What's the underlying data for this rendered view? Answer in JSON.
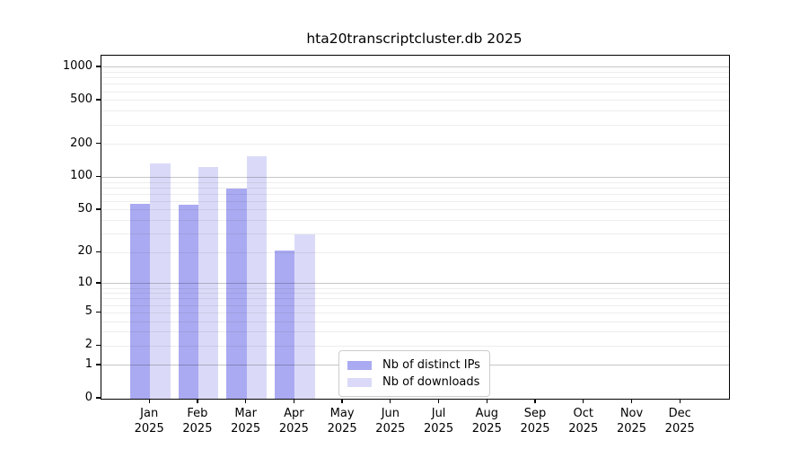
{
  "chart_data": {
    "type": "bar",
    "title": "hta20transcriptcluster.db 2025",
    "categories": [
      "Jan",
      "Feb",
      "Mar",
      "Apr",
      "May",
      "Jun",
      "Jul",
      "Aug",
      "Sep",
      "Oct",
      "Nov",
      "Dec"
    ],
    "x_tick_second_line": "2025",
    "series": [
      {
        "name": "Nb of distinct IPs",
        "color": "#aaaaf2",
        "values": [
          57,
          56,
          79,
          21,
          0,
          0,
          0,
          0,
          0,
          0,
          0,
          0
        ]
      },
      {
        "name": "Nb of downloads",
        "color": "#dadaf8",
        "values": [
          134,
          124,
          156,
          30,
          0,
          0,
          0,
          0,
          0,
          0,
          0,
          0
        ]
      }
    ],
    "y_ticks": [
      0,
      1,
      2,
      5,
      10,
      20,
      50,
      100,
      200,
      500,
      1000
    ],
    "y_scale": "log1p",
    "ylim": [
      0,
      1300
    ],
    "xlabel": "",
    "ylabel": "",
    "grid": "horizontal major and log-minor lines",
    "legend_position": "bottom-center"
  }
}
